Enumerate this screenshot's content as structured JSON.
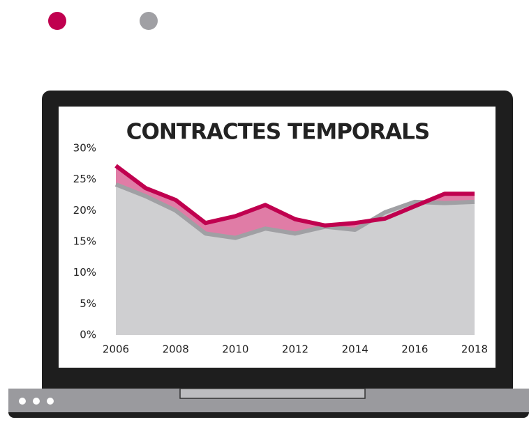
{
  "chart_data": {
    "type": "area",
    "title": "CONTRACTES TEMPORALS",
    "x": [
      2006,
      2007,
      2008,
      2009,
      2010,
      2011,
      2012,
      2013,
      2014,
      2015,
      2016,
      2017,
      2018
    ],
    "series": [
      {
        "color": "#c0004f",
        "values": [
          27.2,
          23.6,
          21.7,
          18.0,
          19.1,
          20.9,
          18.6,
          17.6,
          18.0,
          18.7,
          20.7,
          22.7,
          22.7
        ]
      },
      {
        "color": "#a0a0a4",
        "values": [
          24.2,
          22.3,
          20.0,
          16.3,
          15.6,
          17.1,
          16.3,
          17.4,
          16.9,
          19.7,
          21.4,
          21.2,
          21.4
        ]
      }
    ],
    "xlim": [
      2006,
      2018
    ],
    "xticks": [
      2006,
      2008,
      2010,
      2012,
      2014,
      2016,
      2018
    ],
    "ylim": [
      0,
      30
    ],
    "yticks": [
      {
        "value": 0,
        "label": "0%"
      },
      {
        "value": 5,
        "label": "5%"
      },
      {
        "value": 10,
        "label": "10%"
      },
      {
        "value": 15,
        "label": "15%"
      },
      {
        "value": 20,
        "label": "20%"
      },
      {
        "value": 25,
        "label": "25%"
      },
      {
        "value": 30,
        "label": "30%"
      }
    ]
  }
}
